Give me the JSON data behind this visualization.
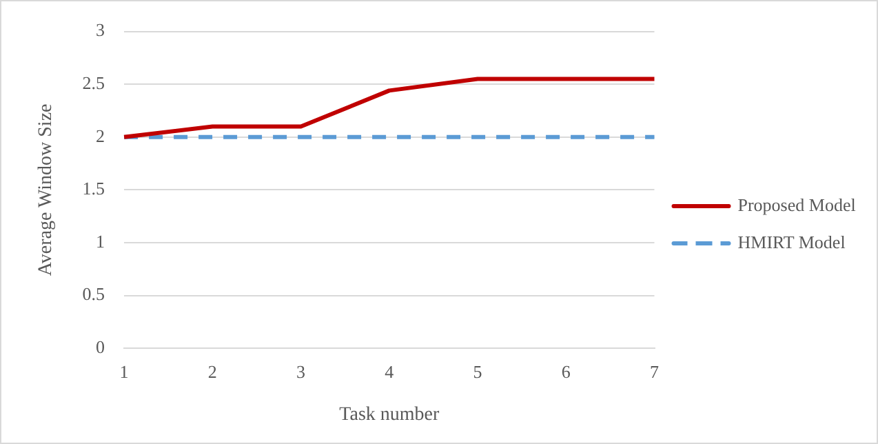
{
  "chart_data": {
    "type": "line",
    "xlabel": "Task number",
    "ylabel": "Average Window Size",
    "categories": [
      "1",
      "2",
      "3",
      "4",
      "5",
      "6",
      "7"
    ],
    "series": [
      {
        "name": "Proposed Model",
        "color": "#c00000",
        "values": [
          2,
          2.1,
          2.1,
          2.44,
          2.55,
          2.55,
          2.55
        ],
        "line_style": "solid"
      },
      {
        "name": "HMIRT Model",
        "color": "#5b9bd5",
        "values": [
          2,
          2,
          2,
          2,
          2,
          2,
          2
        ],
        "line_style": "dashed"
      }
    ],
    "ylim": [
      0,
      3
    ],
    "yticks": [
      0,
      0.5,
      1,
      1.5,
      2,
      2.5,
      3
    ],
    "grid": "y",
    "legend": "right",
    "marker": "none"
  }
}
